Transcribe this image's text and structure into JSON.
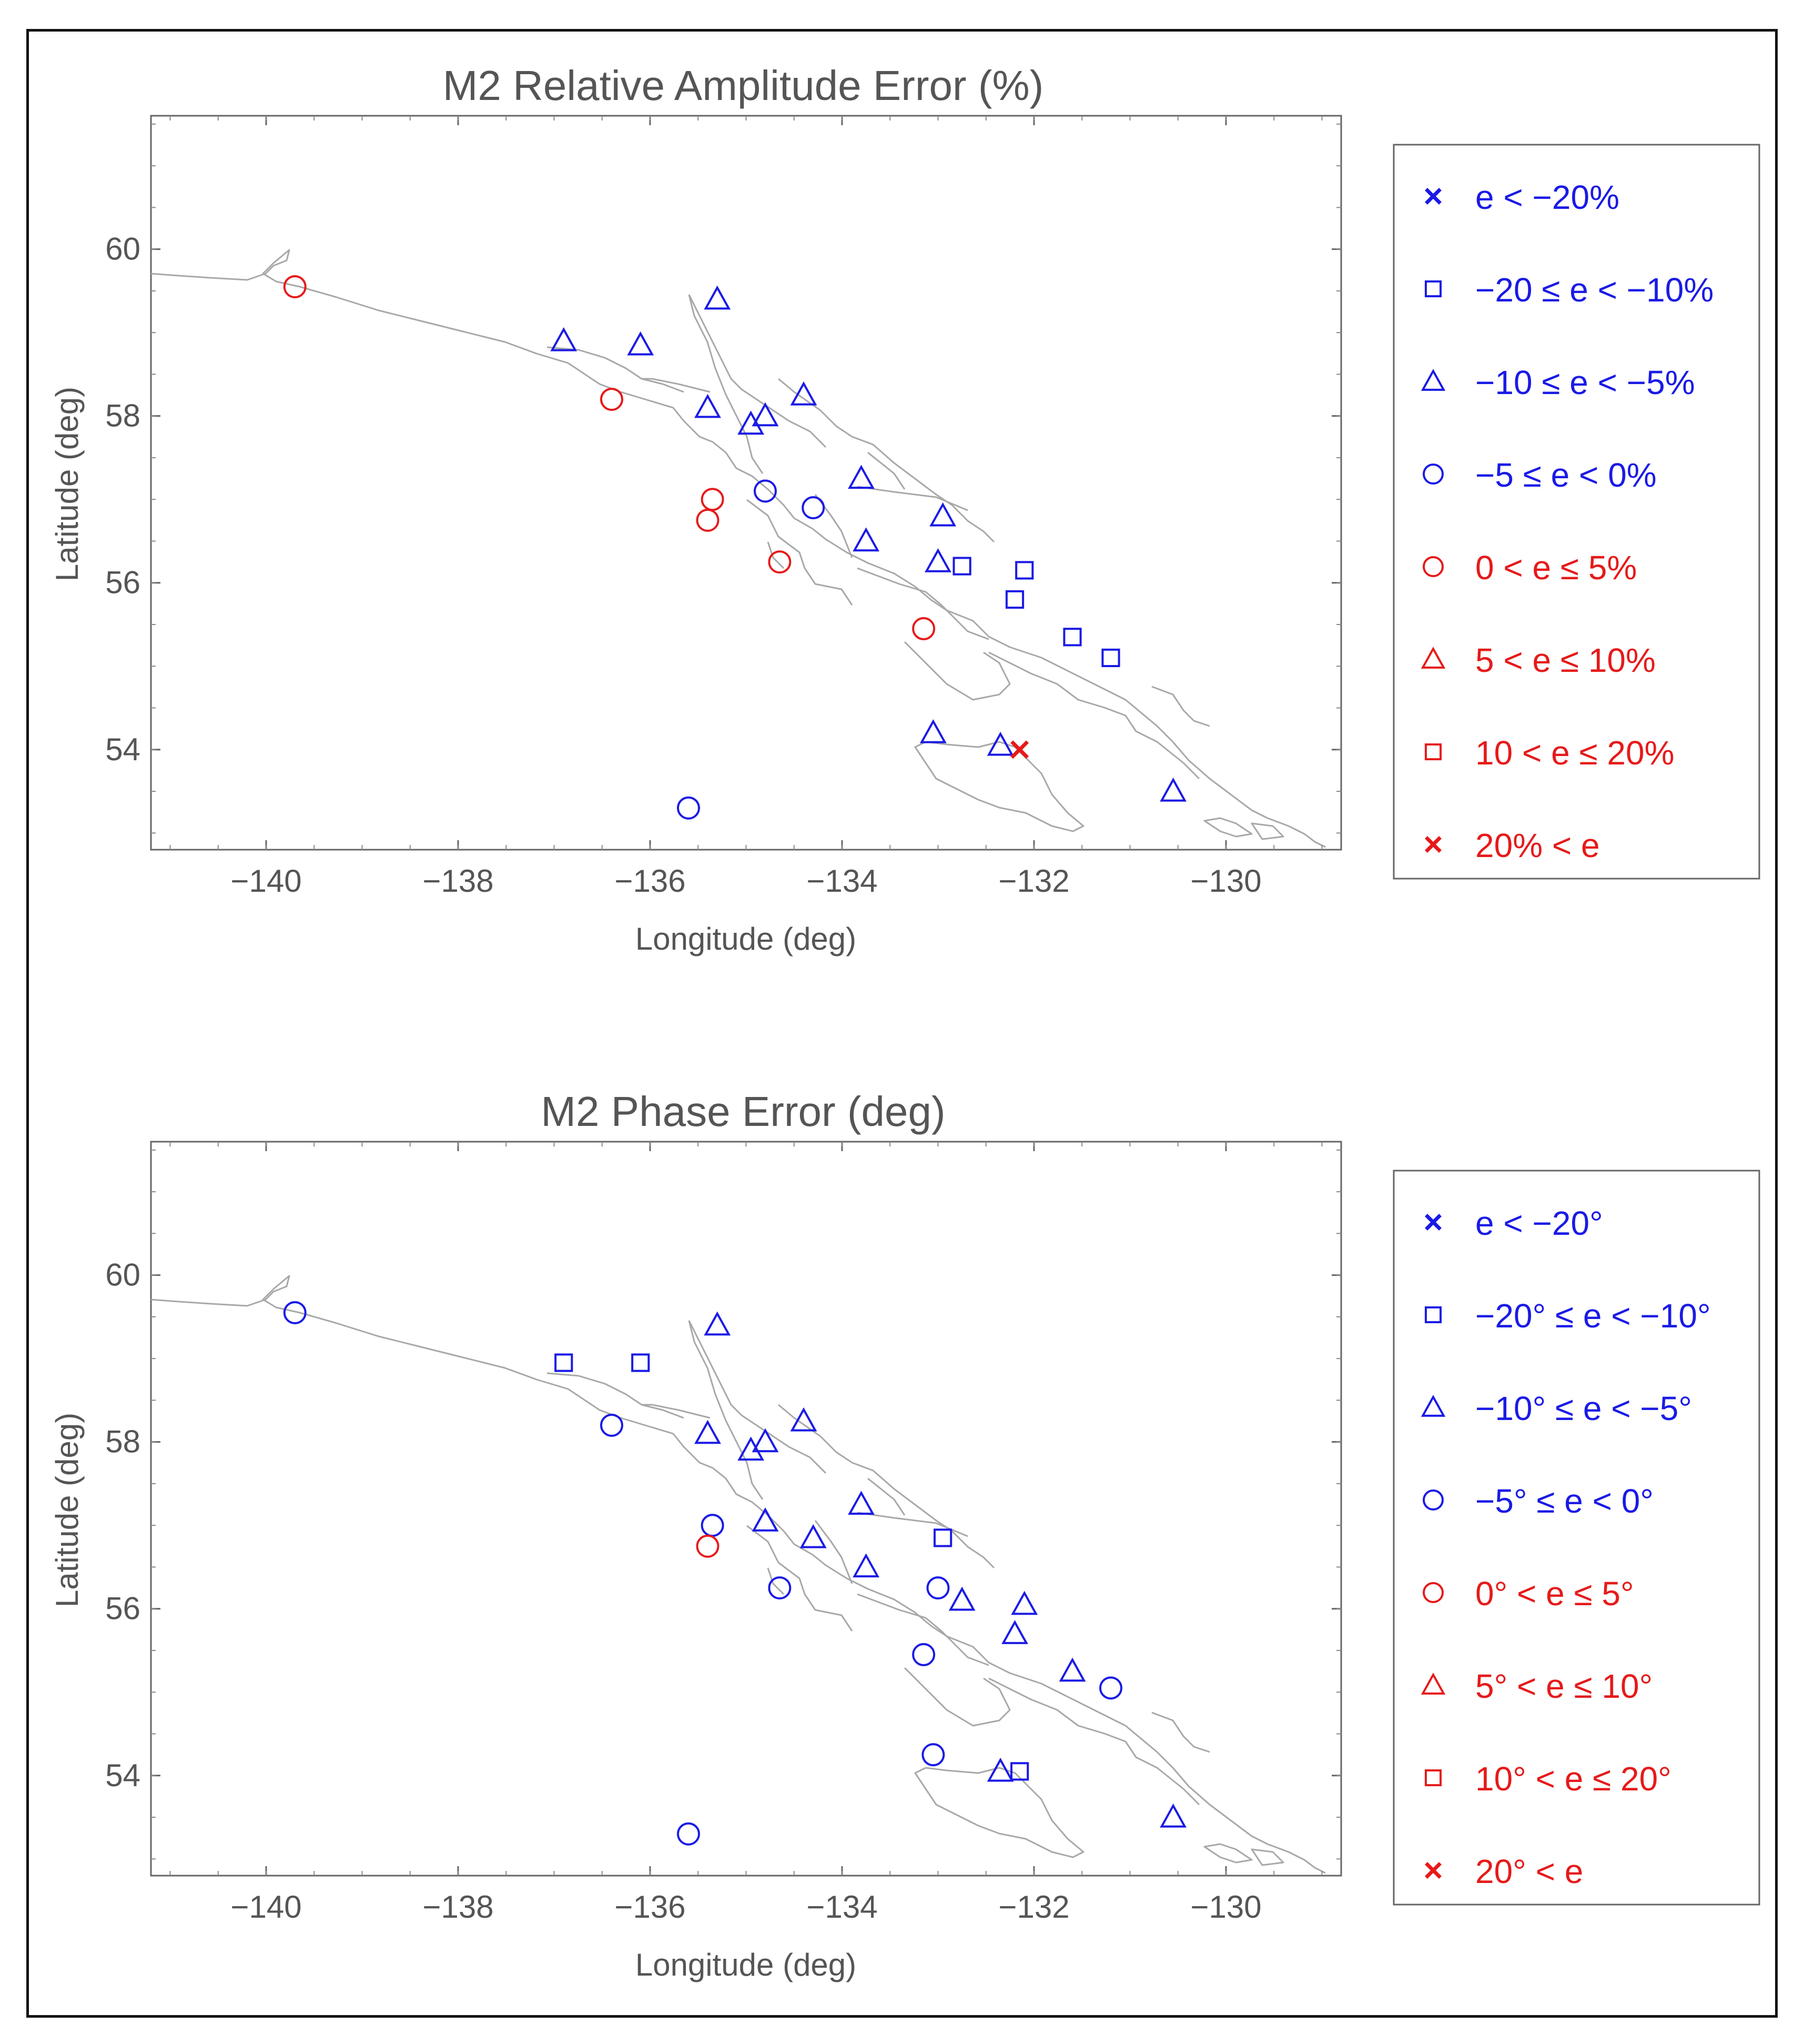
{
  "colors": {
    "blue": "#1a1ae6",
    "red": "#e61a1a",
    "coast": "#a8a8a8",
    "axis": "#666666"
  },
  "panels": [
    {
      "id": "amplitude",
      "title": "M2 Relative Amplitude Error (%)",
      "xlabel": "Longitude (deg)",
      "ylabel": "Latitude (deg)",
      "xticks": [
        "−140",
        "−138",
        "−136",
        "−134",
        "−132",
        "−130"
      ],
      "yticks": [
        "60",
        "58",
        "56",
        "54"
      ],
      "legend": [
        {
          "label": "e < −20%",
          "marker": "x",
          "color": "blue"
        },
        {
          "label": "−20 ≤ e < −10%",
          "marker": "square",
          "color": "blue"
        },
        {
          "label": "−10 ≤ e < −5%",
          "marker": "triangle",
          "color": "blue"
        },
        {
          "label": "−5 ≤ e < 0%",
          "marker": "circle",
          "color": "blue"
        },
        {
          "label": "0 < e ≤ 5%",
          "marker": "circle",
          "color": "red"
        },
        {
          "label": "5 < e ≤ 10%",
          "marker": "triangle",
          "color": "red"
        },
        {
          "label": "10 < e ≤ 20%",
          "marker": "square",
          "color": "red"
        },
        {
          "label": "20% < e",
          "marker": "x",
          "color": "red"
        }
      ]
    },
    {
      "id": "phase",
      "title": "M2 Phase Error (deg)",
      "xlabel": "Longitude (deg)",
      "ylabel": "Latitude (deg)",
      "xticks": [
        "−140",
        "−138",
        "−136",
        "−134",
        "−132",
        "−130"
      ],
      "yticks": [
        "60",
        "58",
        "56",
        "54"
      ],
      "legend": [
        {
          "label": "e < −20°",
          "marker": "x",
          "color": "blue"
        },
        {
          "label": "−20° ≤ e < −10°",
          "marker": "square",
          "color": "blue"
        },
        {
          "label": "−10° ≤ e < −5°",
          "marker": "triangle",
          "color": "blue"
        },
        {
          "label": "−5° ≤ e < 0°",
          "marker": "circle",
          "color": "blue"
        },
        {
          "label": "0° < e ≤ 5°",
          "marker": "circle",
          "color": "red"
        },
        {
          "label": "5° < e ≤ 10°",
          "marker": "triangle",
          "color": "red"
        },
        {
          "label": "10° < e ≤ 20°",
          "marker": "square",
          "color": "red"
        },
        {
          "label": "20° < e",
          "marker": "x",
          "color": "red"
        }
      ]
    }
  ],
  "chart_data": [
    {
      "type": "scatter",
      "title": "M2 Relative Amplitude Error (%)",
      "xlabel": "Longitude (deg)",
      "ylabel": "Latitude (deg)",
      "xlim": [
        -141.2,
        -128.8
      ],
      "ylim": [
        52.8,
        61.6
      ],
      "points": [
        {
          "lon": -139.7,
          "lat": 59.55,
          "marker": "circle",
          "color": "red"
        },
        {
          "lon": -136.9,
          "lat": 58.9,
          "marker": "triangle",
          "color": "blue"
        },
        {
          "lon": -136.1,
          "lat": 58.85,
          "marker": "triangle",
          "color": "blue"
        },
        {
          "lon": -136.4,
          "lat": 58.2,
          "marker": "circle",
          "color": "red"
        },
        {
          "lon": -135.3,
          "lat": 59.4,
          "marker": "triangle",
          "color": "blue"
        },
        {
          "lon": -135.4,
          "lat": 58.1,
          "marker": "triangle",
          "color": "blue"
        },
        {
          "lon": -134.95,
          "lat": 57.9,
          "marker": "triangle",
          "color": "blue"
        },
        {
          "lon": -134.8,
          "lat": 58.0,
          "marker": "triangle",
          "color": "blue"
        },
        {
          "lon": -134.4,
          "lat": 58.25,
          "marker": "triangle",
          "color": "blue"
        },
        {
          "lon": -135.35,
          "lat": 57.0,
          "marker": "circle",
          "color": "red"
        },
        {
          "lon": -135.4,
          "lat": 56.75,
          "marker": "circle",
          "color": "red"
        },
        {
          "lon": -134.8,
          "lat": 57.1,
          "marker": "circle",
          "color": "blue"
        },
        {
          "lon": -134.3,
          "lat": 56.9,
          "marker": "circle",
          "color": "blue"
        },
        {
          "lon": -134.65,
          "lat": 56.25,
          "marker": "circle",
          "color": "red"
        },
        {
          "lon": -133.8,
          "lat": 57.25,
          "marker": "triangle",
          "color": "blue"
        },
        {
          "lon": -133.75,
          "lat": 56.5,
          "marker": "triangle",
          "color": "blue"
        },
        {
          "lon": -132.95,
          "lat": 56.8,
          "marker": "triangle",
          "color": "blue"
        },
        {
          "lon": -133.0,
          "lat": 56.25,
          "marker": "triangle",
          "color": "blue"
        },
        {
          "lon": -132.75,
          "lat": 56.2,
          "marker": "square",
          "color": "blue"
        },
        {
          "lon": -132.1,
          "lat": 56.15,
          "marker": "square",
          "color": "blue"
        },
        {
          "lon": -132.2,
          "lat": 55.8,
          "marker": "square",
          "color": "blue"
        },
        {
          "lon": -133.15,
          "lat": 55.45,
          "marker": "circle",
          "color": "red"
        },
        {
          "lon": -131.6,
          "lat": 55.35,
          "marker": "square",
          "color": "blue"
        },
        {
          "lon": -131.2,
          "lat": 55.1,
          "marker": "square",
          "color": "blue"
        },
        {
          "lon": -133.05,
          "lat": 54.2,
          "marker": "triangle",
          "color": "blue"
        },
        {
          "lon": -132.35,
          "lat": 54.05,
          "marker": "triangle",
          "color": "blue"
        },
        {
          "lon": -132.15,
          "lat": 54.0,
          "marker": "x",
          "color": "red"
        },
        {
          "lon": -130.55,
          "lat": 53.5,
          "marker": "triangle",
          "color": "blue"
        },
        {
          "lon": -135.6,
          "lat": 53.3,
          "marker": "circle",
          "color": "blue"
        }
      ]
    },
    {
      "type": "scatter",
      "title": "M2 Phase Error (deg)",
      "xlabel": "Longitude (deg)",
      "ylabel": "Latitude (deg)",
      "xlim": [
        -141.2,
        -128.8
      ],
      "ylim": [
        52.8,
        61.6
      ],
      "points": [
        {
          "lon": -139.7,
          "lat": 59.55,
          "marker": "circle",
          "color": "blue"
        },
        {
          "lon": -136.9,
          "lat": 58.95,
          "marker": "square",
          "color": "blue"
        },
        {
          "lon": -136.1,
          "lat": 58.95,
          "marker": "square",
          "color": "blue"
        },
        {
          "lon": -136.4,
          "lat": 58.2,
          "marker": "circle",
          "color": "blue"
        },
        {
          "lon": -135.3,
          "lat": 59.4,
          "marker": "triangle",
          "color": "blue"
        },
        {
          "lon": -135.4,
          "lat": 58.1,
          "marker": "triangle",
          "color": "blue"
        },
        {
          "lon": -134.95,
          "lat": 57.9,
          "marker": "triangle",
          "color": "blue"
        },
        {
          "lon": -134.8,
          "lat": 58.0,
          "marker": "triangle",
          "color": "blue"
        },
        {
          "lon": -134.4,
          "lat": 58.25,
          "marker": "triangle",
          "color": "blue"
        },
        {
          "lon": -135.35,
          "lat": 57.0,
          "marker": "circle",
          "color": "blue"
        },
        {
          "lon": -135.4,
          "lat": 56.75,
          "marker": "circle",
          "color": "red"
        },
        {
          "lon": -134.8,
          "lat": 57.05,
          "marker": "triangle",
          "color": "blue"
        },
        {
          "lon": -134.3,
          "lat": 56.85,
          "marker": "triangle",
          "color": "blue"
        },
        {
          "lon": -134.65,
          "lat": 56.25,
          "marker": "circle",
          "color": "blue"
        },
        {
          "lon": -133.8,
          "lat": 57.25,
          "marker": "triangle",
          "color": "blue"
        },
        {
          "lon": -133.75,
          "lat": 56.5,
          "marker": "triangle",
          "color": "blue"
        },
        {
          "lon": -132.95,
          "lat": 56.85,
          "marker": "square",
          "color": "blue"
        },
        {
          "lon": -133.0,
          "lat": 56.25,
          "marker": "circle",
          "color": "blue"
        },
        {
          "lon": -132.75,
          "lat": 56.1,
          "marker": "triangle",
          "color": "blue"
        },
        {
          "lon": -132.1,
          "lat": 56.05,
          "marker": "triangle",
          "color": "blue"
        },
        {
          "lon": -132.2,
          "lat": 55.7,
          "marker": "triangle",
          "color": "blue"
        },
        {
          "lon": -133.15,
          "lat": 55.45,
          "marker": "circle",
          "color": "blue"
        },
        {
          "lon": -131.6,
          "lat": 55.25,
          "marker": "triangle",
          "color": "blue"
        },
        {
          "lon": -131.2,
          "lat": 55.05,
          "marker": "circle",
          "color": "blue"
        },
        {
          "lon": -133.05,
          "lat": 54.25,
          "marker": "circle",
          "color": "blue"
        },
        {
          "lon": -132.35,
          "lat": 54.05,
          "marker": "triangle",
          "color": "blue"
        },
        {
          "lon": -132.15,
          "lat": 54.05,
          "marker": "square",
          "color": "blue"
        },
        {
          "lon": -130.55,
          "lat": 53.5,
          "marker": "triangle",
          "color": "blue"
        },
        {
          "lon": -135.6,
          "lat": 53.3,
          "marker": "circle",
          "color": "blue"
        }
      ]
    }
  ]
}
